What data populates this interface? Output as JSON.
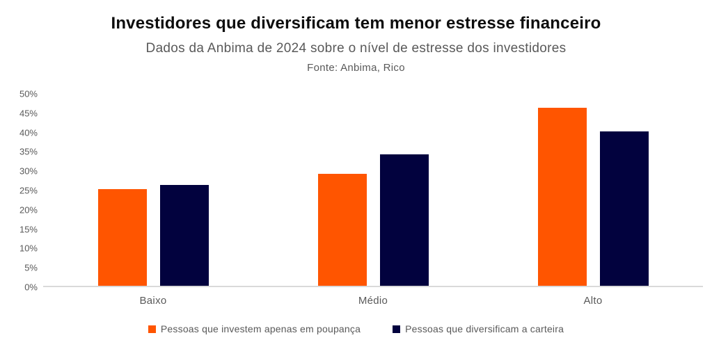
{
  "header": {
    "title": "Investidores que diversificam tem menor estresse financeiro",
    "subtitle": "Dados da Anbima de 2024 sobre o nível de estresse dos investidores",
    "source": "Fonte: Anbima, Rico"
  },
  "chart_data": {
    "type": "bar",
    "title": "Investidores que diversificam tem menor estresse financeiro",
    "subtitle": "Dados da Anbima de 2024 sobre o nível de estresse dos investidores",
    "source": "Fonte: Anbima, Rico",
    "categories": [
      "Baixo",
      "Médio",
      "Alto"
    ],
    "series": [
      {
        "name": "Pessoas que investem apenas em poupança",
        "color": "#FF5500",
        "values": [
          25,
          29,
          46
        ]
      },
      {
        "name": "Pessoas que diversificam a carteira",
        "color": "#02023E",
        "values": [
          26,
          34,
          40
        ]
      }
    ],
    "ylim": [
      0,
      50
    ],
    "ytick_step": 5,
    "ytick_labels": [
      "0%",
      "5%",
      "10%",
      "15%",
      "20%",
      "25%",
      "30%",
      "35%",
      "40%",
      "45%",
      "50%"
    ],
    "grid": false,
    "legend_position": "bottom",
    "colors": {
      "axis_line": "#d9d9d9",
      "text_gray": "#595959",
      "title_black": "#0d0d0d"
    }
  }
}
